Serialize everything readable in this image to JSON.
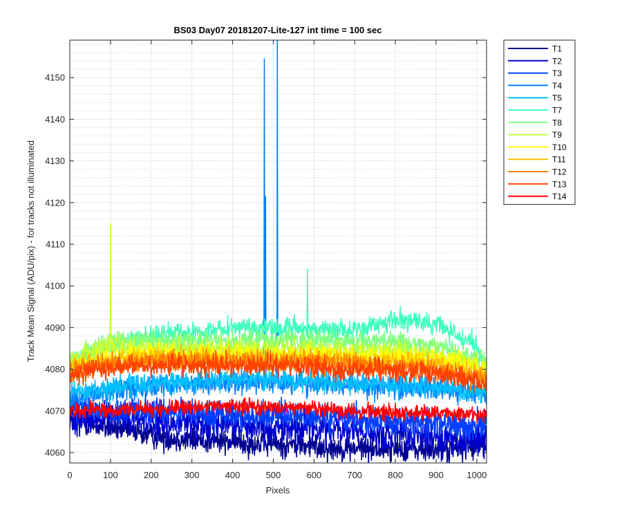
{
  "chart_data": {
    "type": "line",
    "title": "BS03 Day07 20181207-Lite-127 int time = 100 sec",
    "xlabel": "Pixels",
    "ylabel": "Track Mean Signal (ADU/pix) - for tracks not illuminated",
    "xlim": [
      0,
      1024
    ],
    "ylim": [
      4057.5,
      4159
    ],
    "xticks": [
      0,
      100,
      200,
      300,
      400,
      500,
      600,
      700,
      800,
      900,
      1000
    ],
    "yticks": [
      4060,
      4070,
      4080,
      4090,
      4100,
      4110,
      4120,
      4130,
      4140,
      4150
    ],
    "grid": true,
    "minor_grid_y": true,
    "legend_position": "outside-right-top",
    "series": [
      {
        "name": "T1",
        "color": "#00008F",
        "points": [
          [
            0,
            4067.5
          ],
          [
            100,
            4066
          ],
          [
            200,
            4064
          ],
          [
            300,
            4063
          ],
          [
            400,
            4062.5
          ],
          [
            500,
            4062
          ],
          [
            600,
            4061.5
          ],
          [
            700,
            4061
          ],
          [
            800,
            4061
          ],
          [
            900,
            4060.5
          ],
          [
            1000,
            4061.5
          ],
          [
            1024,
            4062
          ]
        ],
        "noise": 2.2
      },
      {
        "name": "T2",
        "color": "#0000CF",
        "points": [
          [
            0,
            4068.5
          ],
          [
            100,
            4068
          ],
          [
            200,
            4067.5
          ],
          [
            300,
            4067
          ],
          [
            400,
            4066.5
          ],
          [
            500,
            4066
          ],
          [
            600,
            4066
          ],
          [
            700,
            4065
          ],
          [
            800,
            4064
          ],
          [
            900,
            4063.5
          ],
          [
            1000,
            4063
          ],
          [
            1024,
            4063
          ]
        ],
        "noise": 2.8
      },
      {
        "name": "T3",
        "color": "#0040FF",
        "points": [
          [
            0,
            4071
          ],
          [
            100,
            4070
          ],
          [
            200,
            4070
          ],
          [
            300,
            4069.5
          ],
          [
            400,
            4069
          ],
          [
            500,
            4069
          ],
          [
            600,
            4068.5
          ],
          [
            700,
            4068
          ],
          [
            800,
            4067.5
          ],
          [
            900,
            4067
          ],
          [
            1000,
            4066.5
          ],
          [
            1024,
            4066.5
          ]
        ],
        "noise": 2.4
      },
      {
        "name": "T4",
        "color": "#0080FF",
        "points": [
          [
            0,
            4073
          ],
          [
            100,
            4075
          ],
          [
            200,
            4076
          ],
          [
            300,
            4076.5
          ],
          [
            400,
            4077
          ],
          [
            500,
            4077
          ],
          [
            600,
            4076.5
          ],
          [
            700,
            4076.5
          ],
          [
            800,
            4076
          ],
          [
            900,
            4075.5
          ],
          [
            1000,
            4074.5
          ],
          [
            1024,
            4074
          ]
        ],
        "noise": 2.0,
        "spikes": [
          [
            478,
            4154.5
          ],
          [
            481,
            4121.5
          ],
          [
            510,
            4159
          ]
        ]
      },
      {
        "name": "T5",
        "color": "#00BFFF",
        "points": [
          [
            0,
            4074
          ],
          [
            100,
            4075.5
          ],
          [
            200,
            4076.5
          ],
          [
            300,
            4077
          ],
          [
            400,
            4077.5
          ],
          [
            500,
            4077.5
          ],
          [
            600,
            4077
          ],
          [
            700,
            4076.5
          ],
          [
            800,
            4076
          ],
          [
            900,
            4075.5
          ],
          [
            1000,
            4074.5
          ],
          [
            1024,
            4074
          ]
        ],
        "noise": 1.8
      },
      {
        "name": "T7",
        "color": "#40FFBF",
        "points": [
          [
            0,
            4081
          ],
          [
            100,
            4086
          ],
          [
            200,
            4088
          ],
          [
            300,
            4089
          ],
          [
            400,
            4090
          ],
          [
            500,
            4090
          ],
          [
            600,
            4089.5
          ],
          [
            700,
            4089.5
          ],
          [
            800,
            4092
          ],
          [
            900,
            4091
          ],
          [
            1000,
            4085
          ],
          [
            1024,
            4081
          ]
        ],
        "noise": 1.8,
        "spikes": [
          [
            584,
            4104
          ]
        ]
      },
      {
        "name": "T8",
        "color": "#80FF80",
        "points": [
          [
            0,
            4082
          ],
          [
            100,
            4087
          ],
          [
            200,
            4087
          ],
          [
            300,
            4087
          ],
          [
            400,
            4087
          ],
          [
            500,
            4087
          ],
          [
            600,
            4087
          ],
          [
            700,
            4086.5
          ],
          [
            800,
            4086.5
          ],
          [
            900,
            4085.5
          ],
          [
            1000,
            4083
          ],
          [
            1024,
            4081
          ]
        ],
        "noise": 1.8
      },
      {
        "name": "T9",
        "color": "#BFFF40",
        "points": [
          [
            0,
            4082
          ],
          [
            100,
            4086
          ],
          [
            200,
            4085
          ],
          [
            300,
            4085
          ],
          [
            400,
            4085
          ],
          [
            500,
            4085
          ],
          [
            600,
            4085
          ],
          [
            700,
            4084.5
          ],
          [
            800,
            4084.5
          ],
          [
            900,
            4083.5
          ],
          [
            1000,
            4081.5
          ],
          [
            1024,
            4080
          ]
        ],
        "noise": 1.8,
        "spikes": [
          [
            100,
            4115
          ]
        ]
      },
      {
        "name": "T10",
        "color": "#FFFF00",
        "points": [
          [
            0,
            4081
          ],
          [
            100,
            4083
          ],
          [
            200,
            4083.5
          ],
          [
            300,
            4083.5
          ],
          [
            400,
            4083.5
          ],
          [
            500,
            4083.5
          ],
          [
            600,
            4083.5
          ],
          [
            700,
            4083
          ],
          [
            800,
            4083
          ],
          [
            900,
            4082.5
          ],
          [
            1000,
            4080.5
          ],
          [
            1024,
            4079
          ]
        ],
        "noise": 1.8
      },
      {
        "name": "T11",
        "color": "#FFBF00",
        "points": [
          [
            0,
            4080.5
          ],
          [
            100,
            4082
          ],
          [
            200,
            4082.5
          ],
          [
            300,
            4082.5
          ],
          [
            400,
            4082.5
          ],
          [
            500,
            4082.5
          ],
          [
            600,
            4082.5
          ],
          [
            700,
            4082
          ],
          [
            800,
            4082
          ],
          [
            900,
            4081
          ],
          [
            1000,
            4079
          ],
          [
            1024,
            4078
          ]
        ],
        "noise": 1.8
      },
      {
        "name": "T12",
        "color": "#FF8000",
        "points": [
          [
            0,
            4080
          ],
          [
            100,
            4081.5
          ],
          [
            200,
            4082
          ],
          [
            300,
            4082
          ],
          [
            400,
            4082
          ],
          [
            500,
            4082
          ],
          [
            600,
            4081.5
          ],
          [
            700,
            4081
          ],
          [
            800,
            4080.5
          ],
          [
            900,
            4080
          ],
          [
            1000,
            4078
          ],
          [
            1024,
            4077
          ]
        ],
        "noise": 1.8
      },
      {
        "name": "T13",
        "color": "#FF4000",
        "points": [
          [
            0,
            4079
          ],
          [
            100,
            4080.5
          ],
          [
            200,
            4081
          ],
          [
            300,
            4081
          ],
          [
            400,
            4081
          ],
          [
            500,
            4081
          ],
          [
            600,
            4080.5
          ],
          [
            700,
            4080
          ],
          [
            800,
            4079.5
          ],
          [
            900,
            4079
          ],
          [
            1000,
            4077
          ],
          [
            1024,
            4076
          ]
        ],
        "noise": 1.8
      },
      {
        "name": "T14",
        "color": "#FF0000",
        "points": [
          [
            0,
            4070
          ],
          [
            100,
            4070
          ],
          [
            200,
            4070.5
          ],
          [
            300,
            4071
          ],
          [
            400,
            4071
          ],
          [
            500,
            4071
          ],
          [
            600,
            4070.5
          ],
          [
            700,
            4070
          ],
          [
            800,
            4069.5
          ],
          [
            900,
            4069.5
          ],
          [
            1000,
            4069
          ],
          [
            1024,
            4069
          ]
        ],
        "noise": 1.3
      }
    ]
  }
}
